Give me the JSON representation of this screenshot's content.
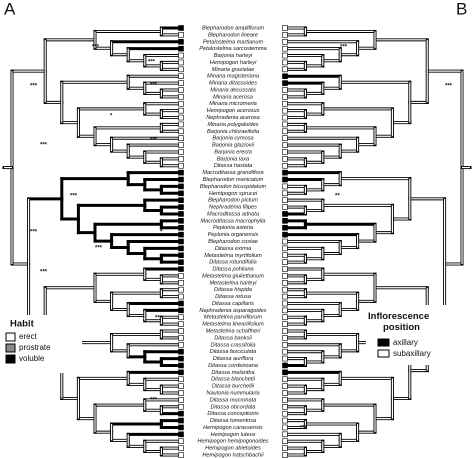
{
  "panels": [
    "A",
    "B"
  ],
  "taxa": [
    "Blepharodon ampliflorum",
    "Blepharodon lineare",
    "Petalostelma martianum",
    "Petalostelma sarcostemma",
    "Barjonia harleyi",
    "Hemipogon harleyi",
    "Minaria grazielae",
    "Minaria magisteriana",
    "Minaria ditassoides",
    "Minaria decussata",
    "Minaria acerosa",
    "Minaria micromeria",
    "Hemipogon acerosus",
    "Nephradenia acerosa",
    "Minaria polygaloides",
    "Barjonia chloraeifolia",
    "Barjonia cymosa",
    "Barjonia glaziovii",
    "Barjonia erecta",
    "Barjonia laxa",
    "Ditassa hastata",
    "Macroditassa grandiflora",
    "Blepharodon manicatum",
    "Blepharodon bicuspidatum",
    "Hemipogon sprucei",
    "Blepharodon pictum",
    "Nephradenia filipes",
    "Macroditassa adnata",
    "Macroditassa macrophylla",
    "Peplonia asteria",
    "Peplonia organensis",
    "Blepharodon costae",
    "Ditassa eximia",
    "Metastelma myrtifolium",
    "Ditassa rotundifolia",
    "Ditassa pohliana",
    "Metastelma giuliettianum",
    "Metastelma harleyi",
    "Ditassa hispida",
    "Ditassa retusa",
    "Ditassa capillaris",
    "Nephradenia asparagoides",
    "Metastelma parviflorum",
    "Metastelma lineariifolium",
    "Metastelma schaffneri",
    "Ditassa banksii",
    "Ditassa crassifolia",
    "Ditassa fasciculata",
    "Ditassa auriflora",
    "Ditassa cordeiroana",
    "Ditassa melantha",
    "Ditassa blanchetii",
    "Ditassa burchellii",
    "Nautonia nummularia",
    "Ditassa mucronata",
    "Ditassa obcordata",
    "Ditassa conceptionis",
    "Ditassa tomentosa",
    "Hemipogon carassensis",
    "Hemipogon luteus",
    "Hemipogon hemipogonoides",
    "Hemipogon abietoides",
    "Hemipogon hatschbachii"
  ],
  "annotations": [
    "***",
    "***",
    "***",
    "***",
    "*",
    "***",
    "***",
    "***",
    "***",
    "*",
    "***",
    "***",
    "**",
    "***",
    "***",
    "***",
    "***",
    "**",
    "*",
    "***"
  ],
  "legend_habit": {
    "title": "Habit",
    "items": [
      "erect",
      "prostrate",
      "voluble"
    ]
  },
  "legend_inflorescence": {
    "title": "Inflorescence position",
    "items": [
      "axillary",
      "subaxillary"
    ]
  }
}
